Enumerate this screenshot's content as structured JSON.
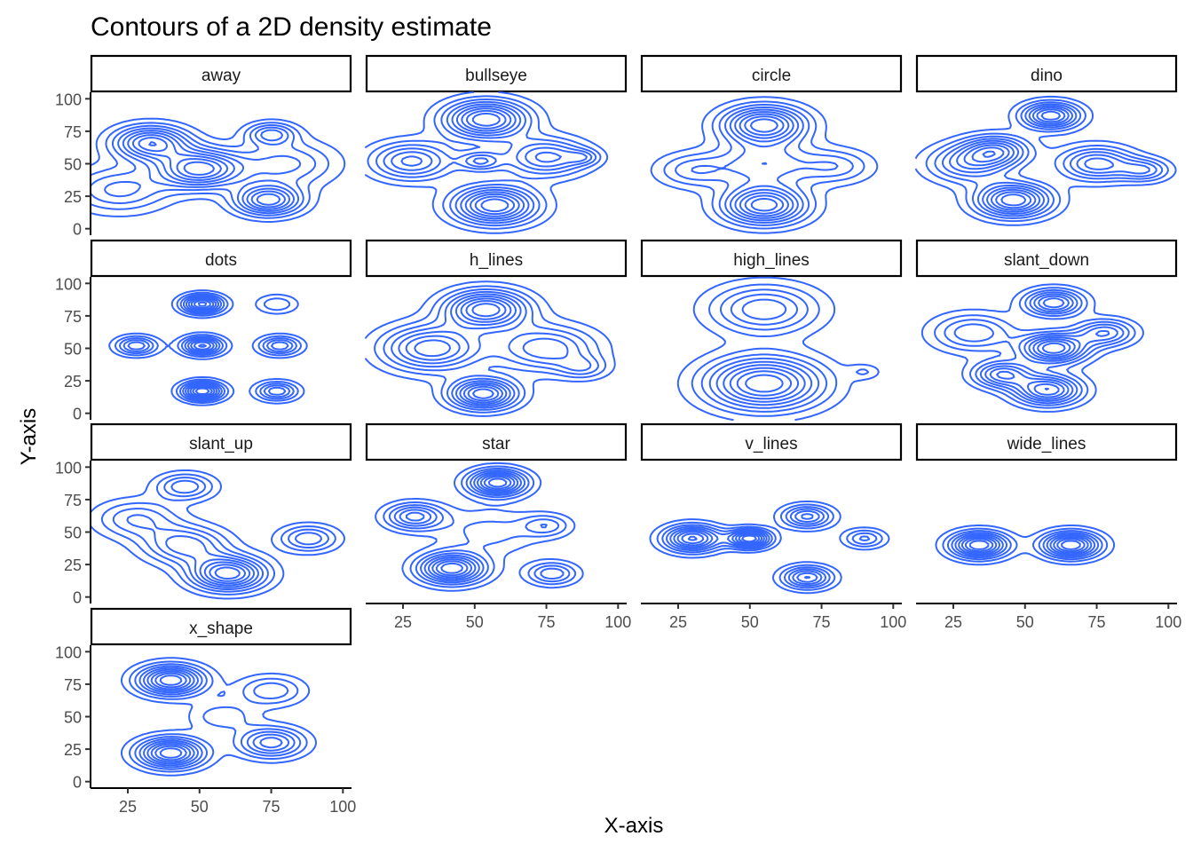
{
  "chart_data": {
    "type": "contour",
    "title": "Contours of a 2D density estimate",
    "xlabel": "X-axis",
    "ylabel": "Y-axis",
    "x_ticks": [
      25,
      50,
      75,
      100
    ],
    "y_ticks": [
      0,
      25,
      50,
      75,
      100
    ],
    "xlim": [
      12,
      103
    ],
    "ylim": [
      -5,
      105
    ],
    "line_color": "#3366FF",
    "grid": false,
    "facets": [
      {
        "name": "away",
        "peaks": [
          {
            "x": 33,
            "y": 66,
            "s": 9,
            "w": 1.0
          },
          {
            "x": 50,
            "y": 46,
            "s": 10,
            "w": 1.1
          },
          {
            "x": 74,
            "y": 22,
            "s": 8,
            "w": 1.0
          },
          {
            "x": 75,
            "y": 73,
            "s": 6,
            "w": 0.6
          },
          {
            "x": 22,
            "y": 30,
            "s": 12,
            "w": 0.5
          },
          {
            "x": 80,
            "y": 50,
            "s": 12,
            "w": 0.5
          }
        ]
      },
      {
        "name": "bullseye",
        "peaks": [
          {
            "x": 54,
            "y": 84,
            "s": 10,
            "w": 1.1
          },
          {
            "x": 57,
            "y": 18,
            "s": 10,
            "w": 1.1
          },
          {
            "x": 28,
            "y": 52,
            "s": 10,
            "w": 0.7
          },
          {
            "x": 75,
            "y": 55,
            "s": 10,
            "w": 0.7
          },
          {
            "x": 52,
            "y": 52,
            "s": 5,
            "w": 0.5
          },
          {
            "x": 88,
            "y": 55,
            "s": 4,
            "w": 0.3
          }
        ]
      },
      {
        "name": "circle",
        "peaks": [
          {
            "x": 55,
            "y": 80,
            "s": 10,
            "w": 2.5
          },
          {
            "x": 55,
            "y": 18,
            "s": 10,
            "w": 2.5
          },
          {
            "x": 55,
            "y": 50,
            "s": 12,
            "w": 1.2
          },
          {
            "x": 30,
            "y": 45,
            "s": 9,
            "w": 0.9
          },
          {
            "x": 80,
            "y": 48,
            "s": 9,
            "w": 0.9
          }
        ]
      },
      {
        "name": "dino",
        "peaks": [
          {
            "x": 59,
            "y": 87,
            "s": 7,
            "w": 0.8
          },
          {
            "x": 46,
            "y": 22,
            "s": 9,
            "w": 0.9
          },
          {
            "x": 40,
            "y": 60,
            "s": 8,
            "w": 0.6
          },
          {
            "x": 75,
            "y": 50,
            "s": 9,
            "w": 0.6
          },
          {
            "x": 30,
            "y": 50,
            "s": 10,
            "w": 0.5
          },
          {
            "x": 92,
            "y": 45,
            "s": 6,
            "w": 0.4
          }
        ]
      },
      {
        "name": "dots",
        "peaks": [
          {
            "x": 51,
            "y": 84,
            "s": 5,
            "w": 1.6
          },
          {
            "x": 51,
            "y": 52,
            "s": 5,
            "w": 1.4
          },
          {
            "x": 51,
            "y": 17,
            "s": 5,
            "w": 1.7
          },
          {
            "x": 28,
            "y": 52,
            "s": 5,
            "w": 1.0
          },
          {
            "x": 78,
            "y": 52,
            "s": 5,
            "w": 1.0
          },
          {
            "x": 77,
            "y": 17,
            "s": 5,
            "w": 1.0
          },
          {
            "x": 77,
            "y": 84,
            "s": 5,
            "w": 0.5
          }
        ]
      },
      {
        "name": "h_lines",
        "peaks": [
          {
            "x": 54,
            "y": 80,
            "s": 10,
            "w": 1.0
          },
          {
            "x": 53,
            "y": 15,
            "s": 8,
            "w": 1.0
          },
          {
            "x": 35,
            "y": 50,
            "s": 12,
            "w": 0.8
          },
          {
            "x": 75,
            "y": 50,
            "s": 12,
            "w": 0.6
          },
          {
            "x": 88,
            "y": 35,
            "s": 6,
            "w": 0.3
          }
        ]
      },
      {
        "name": "high_lines",
        "peaks": [
          {
            "x": 55,
            "y": 80,
            "s": 13,
            "w": 1.3
          },
          {
            "x": 55,
            "y": 23,
            "s": 14,
            "w": 2.2
          },
          {
            "x": 90,
            "y": 32,
            "s": 4,
            "w": 0.4
          }
        ]
      },
      {
        "name": "slant_down",
        "peaks": [
          {
            "x": 60,
            "y": 85,
            "s": 7,
            "w": 0.8
          },
          {
            "x": 60,
            "y": 50,
            "s": 8,
            "w": 1.0
          },
          {
            "x": 58,
            "y": 18,
            "s": 8,
            "w": 0.9
          },
          {
            "x": 42,
            "y": 30,
            "s": 7,
            "w": 0.7
          },
          {
            "x": 78,
            "y": 62,
            "s": 7,
            "w": 0.6
          },
          {
            "x": 32,
            "y": 62,
            "s": 10,
            "w": 0.5
          }
        ]
      },
      {
        "name": "slant_up",
        "peaks": [
          {
            "x": 60,
            "y": 18,
            "s": 9,
            "w": 1.2
          },
          {
            "x": 45,
            "y": 40,
            "s": 10,
            "w": 0.7
          },
          {
            "x": 88,
            "y": 45,
            "s": 7,
            "w": 0.6
          },
          {
            "x": 45,
            "y": 85,
            "s": 7,
            "w": 0.6
          },
          {
            "x": 28,
            "y": 60,
            "s": 10,
            "w": 0.5
          }
        ]
      },
      {
        "name": "star",
        "peaks": [
          {
            "x": 58,
            "y": 88,
            "s": 7,
            "w": 2.0
          },
          {
            "x": 42,
            "y": 22,
            "s": 8,
            "w": 2.0
          },
          {
            "x": 29,
            "y": 62,
            "s": 7,
            "w": 1.3
          },
          {
            "x": 77,
            "y": 18,
            "s": 6,
            "w": 1.0
          },
          {
            "x": 75,
            "y": 55,
            "s": 6,
            "w": 0.7
          },
          {
            "x": 55,
            "y": 50,
            "s": 12,
            "w": 0.5
          }
        ]
      },
      {
        "name": "v_lines",
        "peaks": [
          {
            "x": 30,
            "y": 45,
            "s": 7,
            "w": 1.3
          },
          {
            "x": 50,
            "y": 45,
            "s": 5,
            "w": 1.4
          },
          {
            "x": 70,
            "y": 15,
            "s": 6,
            "w": 1.0
          },
          {
            "x": 70,
            "y": 62,
            "s": 6,
            "w": 0.9
          },
          {
            "x": 90,
            "y": 45,
            "s": 5,
            "w": 0.6
          }
        ]
      },
      {
        "name": "wide_lines",
        "peaks": [
          {
            "x": 34,
            "y": 40,
            "s": 7,
            "w": 1.5
          },
          {
            "x": 66,
            "y": 40,
            "s": 7,
            "w": 1.5
          }
        ]
      },
      {
        "name": "x_shape",
        "peaks": [
          {
            "x": 40,
            "y": 78,
            "s": 8,
            "w": 1.8
          },
          {
            "x": 40,
            "y": 22,
            "s": 8,
            "w": 1.8
          },
          {
            "x": 75,
            "y": 30,
            "s": 8,
            "w": 1.2
          },
          {
            "x": 75,
            "y": 70,
            "s": 8,
            "w": 0.7
          },
          {
            "x": 58,
            "y": 50,
            "s": 8,
            "w": 0.5
          }
        ]
      }
    ]
  }
}
